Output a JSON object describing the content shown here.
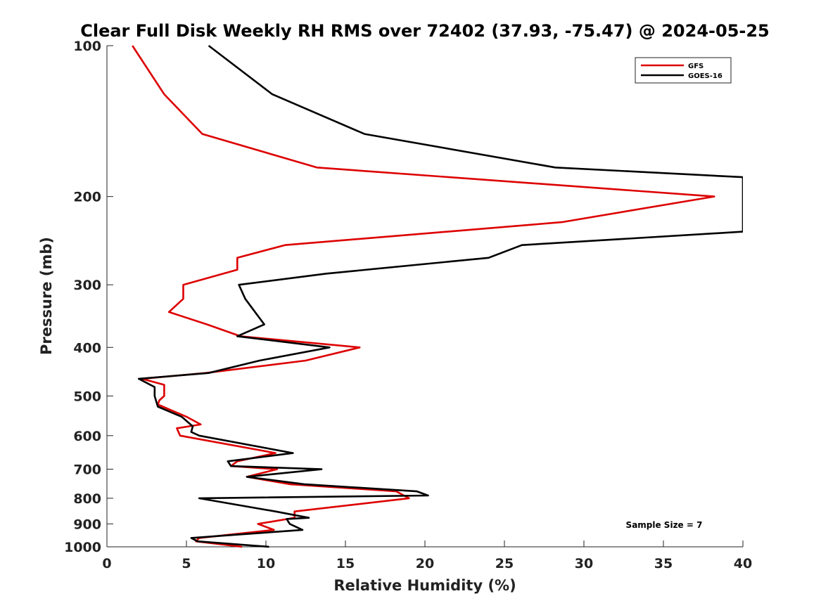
{
  "chart_data": {
    "type": "line",
    "title": "Clear Full Disk Weekly RH RMS over 72402 (37.93, -75.47) @ 2024-05-25",
    "xlabel": "Relative Humidity (%)",
    "ylabel": "Pressure (mb)",
    "xlim": [
      0,
      40
    ],
    "ylim": [
      100,
      1000
    ],
    "yscale": "log",
    "reverse_y": true,
    "xticks": [
      0,
      5,
      10,
      15,
      20,
      25,
      30,
      35,
      40
    ],
    "yticks": [
      100,
      200,
      300,
      400,
      500,
      600,
      700,
      800,
      900,
      1000
    ],
    "grid": false,
    "legend_position": "top-right",
    "annotation": "Sample Size = 7",
    "series": [
      {
        "name": "GFS",
        "color": "#dd0000",
        "pressure": [
          100,
          125,
          150,
          175,
          200,
          225,
          250,
          265,
          280,
          300,
          320,
          340,
          360,
          380,
          400,
          425,
          450,
          462,
          475,
          500,
          510,
          520,
          550,
          570,
          580,
          600,
          650,
          675,
          690,
          700,
          725,
          750,
          775,
          800,
          850,
          875,
          900,
          925,
          960,
          975,
          1000
        ],
        "values": [
          1.6,
          3.6,
          6.0,
          13.2,
          38.2,
          28.6,
          11.2,
          8.2,
          8.2,
          4.8,
          4.8,
          3.9,
          6.3,
          8.4,
          15.9,
          12.5,
          6.2,
          2.2,
          3.6,
          3.6,
          3.3,
          3.2,
          5.0,
          5.9,
          4.4,
          4.6,
          10.6,
          8.2,
          7.8,
          10.7,
          8.8,
          11.5,
          18.2,
          19.0,
          11.8,
          11.8,
          9.5,
          10.5,
          5.8,
          5.6,
          8.5
        ]
      },
      {
        "name": "GOES-16",
        "color": "#000000",
        "pressure": [
          100,
          125,
          150,
          175,
          183,
          235,
          250,
          265,
          285,
          300,
          320,
          360,
          380,
          400,
          425,
          450,
          462,
          480,
          500,
          525,
          550,
          575,
          590,
          600,
          650,
          675,
          690,
          700,
          725,
          750,
          775,
          790,
          800,
          850,
          875,
          880,
          900,
          925,
          960,
          975,
          1000
        ],
        "values": [
          6.4,
          10.4,
          16.2,
          28.2,
          40.0,
          40.0,
          26.1,
          24.0,
          13.8,
          8.3,
          8.7,
          9.9,
          8.2,
          14.0,
          9.6,
          6.4,
          2.0,
          3.0,
          3.0,
          3.2,
          4.7,
          5.4,
          5.3,
          5.8,
          11.7,
          7.6,
          7.8,
          13.5,
          8.8,
          12.4,
          19.5,
          20.2,
          5.8,
          10.6,
          12.7,
          11.3,
          11.5,
          12.3,
          5.3,
          5.7,
          10.2
        ]
      }
    ]
  }
}
